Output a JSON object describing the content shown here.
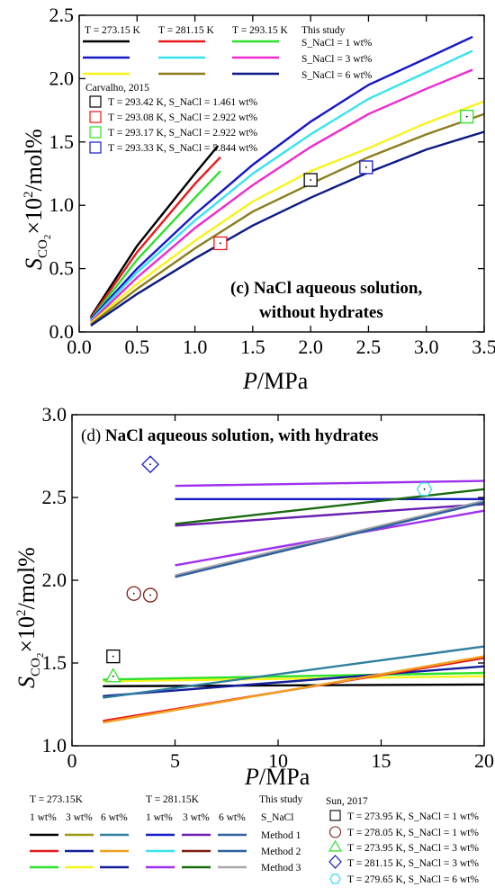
{
  "colors": {
    "black": "#000000",
    "red": "#e8191c",
    "green": "#2ee12a",
    "blue": "#1518c8",
    "cyan": "#38e3f0",
    "magenta": "#ef2ad0",
    "yellow": "#f7f41a",
    "olive": "#8c7d1c",
    "navy": "#0b1a85",
    "olive2": "#9a9a11",
    "teal": "#2f7f9f",
    "darkblue": "#141f9a",
    "orange": "#f0a020",
    "violet": "#6a1fb0",
    "brown": "#7a1c10",
    "steel": "#3060a0",
    "darkgreen": "#1a6a10",
    "purple": "#a030f0",
    "gray": "#a8a8a8",
    "lightblue": "#38d8f0"
  },
  "chart_data": [
    {
      "type": "line",
      "xlabel": {
        "italic": "P",
        "rest": "/MPa"
      },
      "ylabel": {
        "italic": "S",
        "sub": "CO",
        "sub2": "2",
        "rest": "×10",
        "sup": "2",
        "rest2": "/mol%"
      },
      "xlim": [
        0,
        3.5
      ],
      "ylim": [
        0,
        2.5
      ],
      "xticks": [
        "0.0",
        "0.5",
        "1.0",
        "1.5",
        "2.0",
        "2.5",
        "3.0",
        "3.5"
      ],
      "yticks": [
        "0.0",
        "0.5",
        "1.0",
        "1.5",
        "2.0",
        "2.5"
      ],
      "annotation": [
        "(c) NaCl aqueous solution,",
        "without hydrates"
      ],
      "legend_headers": [
        "T = 273.15 K",
        "T = 281.15 K",
        "T = 293.15 K",
        "This study"
      ],
      "legend_conditions": [
        "S_NaCl = 1 wt%",
        "S_NaCl = 3 wt%",
        "S_NaCl = 6 wt%"
      ],
      "legend_source": "Carvalho, 2015",
      "legend_points": [
        "T = 293.42 K, S_NaCl = 1.461 wt%",
        "T = 293.08 K, S_NaCl = 2.922 wt%",
        "T = 293.17 K, S_NaCl = 2.922 wt%",
        "T = 293.33 K, S_NaCl = 5.844 wt%"
      ],
      "series": [
        {
          "color": "black",
          "x": [
            0.1,
            0.5,
            1.0,
            1.2
          ],
          "y": [
            0.12,
            0.68,
            1.25,
            1.47
          ]
        },
        {
          "color": "red",
          "x": [
            0.1,
            0.5,
            1.0,
            1.22
          ],
          "y": [
            0.11,
            0.63,
            1.17,
            1.38
          ]
        },
        {
          "color": "green",
          "x": [
            0.1,
            0.5,
            1.0,
            1.22
          ],
          "y": [
            0.1,
            0.57,
            1.06,
            1.27
          ]
        },
        {
          "color": "blue",
          "x": [
            0.1,
            0.5,
            1.0,
            1.5,
            2.0,
            2.5,
            3.0,
            3.4
          ],
          "y": [
            0.1,
            0.5,
            0.93,
            1.32,
            1.66,
            1.95,
            2.16,
            2.33
          ]
        },
        {
          "color": "cyan",
          "x": [
            0.1,
            0.5,
            1.0,
            1.5,
            2.0,
            2.5,
            3.0,
            3.4
          ],
          "y": [
            0.09,
            0.47,
            0.88,
            1.25,
            1.56,
            1.84,
            2.05,
            2.22
          ]
        },
        {
          "color": "magenta",
          "x": [
            0.1,
            0.5,
            1.0,
            1.5,
            2.0,
            2.5,
            3.0,
            3.4
          ],
          "y": [
            0.08,
            0.43,
            0.82,
            1.16,
            1.46,
            1.72,
            1.92,
            2.07
          ]
        },
        {
          "color": "yellow",
          "x": [
            0.1,
            0.5,
            1.0,
            1.5,
            2.0,
            2.5,
            3.0,
            3.5
          ],
          "y": [
            0.07,
            0.38,
            0.72,
            1.03,
            1.27,
            1.45,
            1.65,
            1.82
          ]
        },
        {
          "color": "olive",
          "x": [
            0.1,
            0.5,
            1.0,
            1.5,
            2.0,
            2.5,
            3.0,
            3.5
          ],
          "y": [
            0.06,
            0.34,
            0.66,
            0.95,
            1.17,
            1.38,
            1.56,
            1.72
          ]
        },
        {
          "color": "navy",
          "x": [
            0.1,
            0.5,
            1.0,
            1.5,
            2.0,
            2.5,
            3.0,
            3.5
          ],
          "y": [
            0.05,
            0.3,
            0.58,
            0.84,
            1.06,
            1.26,
            1.44,
            1.58
          ]
        }
      ],
      "points": [
        {
          "x": 2.0,
          "y": 1.2,
          "color": "black",
          "shape": "square"
        },
        {
          "x": 1.22,
          "y": 0.7,
          "color": "red",
          "shape": "square"
        },
        {
          "x": 3.35,
          "y": 1.7,
          "color": "green",
          "shape": "square"
        },
        {
          "x": 2.48,
          "y": 1.3,
          "color": "blue",
          "shape": "square"
        }
      ]
    },
    {
      "type": "line",
      "xlabel": {
        "italic": "P",
        "rest": "/MPa"
      },
      "ylabel": {
        "italic": "S",
        "sub": "CO",
        "sub2": "2",
        "rest": "×10",
        "sup": "2",
        "rest2": "/mol%"
      },
      "xlim": [
        0,
        20
      ],
      "ylim": [
        1.0,
        3.0
      ],
      "xticks": [
        "0",
        "5",
        "10",
        "15",
        "20"
      ],
      "yticks": [
        "1.0",
        "1.5",
        "2.0",
        "2.5",
        "3.0"
      ],
      "annotation": [
        "(d) NaCl aqueous solution, with hydrates"
      ],
      "legend_t1": "T = 273.15K",
      "legend_t2": "T = 281.15K",
      "legend_study": "This study",
      "legend_snacl": "S_NaCl",
      "legend_wt": [
        "1 wt%",
        "3 wt%",
        "6 wt%"
      ],
      "legend_methods": [
        "Method 1",
        "Method 2",
        "Method 3"
      ],
      "legend_source": "Sun, 2017",
      "legend_points": [
        "T = 273.95 K, S_NaCl = 1 wt%",
        "T = 278.05 K, S_NaCl = 1 wt%",
        "T = 273.95 K, S_NaCl = 3 wt%",
        "T = 281.15 K, S_NaCl = 3 wt%",
        "T = 279.65 K, S_NaCl = 6 wt%"
      ],
      "legend_swatch_colors": [
        [
          "black",
          "olive2",
          "teal",
          "blue",
          "violet",
          "steel"
        ],
        [
          "red",
          "darkblue",
          "orange",
          "cyan",
          "brown",
          "steel"
        ],
        [
          "green",
          "yellow",
          "darkblue",
          "purple",
          "darkgreen",
          "gray"
        ]
      ],
      "series": [
        {
          "color": "black",
          "x": [
            1.5,
            20
          ],
          "y": [
            1.36,
            1.37
          ]
        },
        {
          "color": "yellow",
          "x": [
            1.5,
            20
          ],
          "y": [
            1.39,
            1.42
          ]
        },
        {
          "color": "green",
          "x": [
            1.5,
            20
          ],
          "y": [
            1.4,
            1.44
          ]
        },
        {
          "color": "darkblue",
          "x": [
            1.5,
            20
          ],
          "y": [
            1.3,
            1.48
          ]
        },
        {
          "color": "teal",
          "x": [
            1.5,
            20
          ],
          "y": [
            1.29,
            1.6
          ]
        },
        {
          "color": "red",
          "x": [
            1.5,
            20
          ],
          "y": [
            1.15,
            1.53
          ]
        },
        {
          "color": "orange",
          "x": [
            1.5,
            20
          ],
          "y": [
            1.14,
            1.54
          ]
        },
        {
          "color": "purple",
          "x": [
            5,
            20
          ],
          "y": [
            2.57,
            2.6
          ]
        },
        {
          "color": "blue",
          "x": [
            5,
            20
          ],
          "y": [
            2.49,
            2.49
          ]
        },
        {
          "color": "darkgreen",
          "x": [
            5,
            20
          ],
          "y": [
            2.34,
            2.55
          ]
        },
        {
          "color": "violet",
          "x": [
            5,
            20
          ],
          "y": [
            2.33,
            2.46
          ]
        },
        {
          "color": "purple",
          "x": [
            5,
            20
          ],
          "y": [
            2.09,
            2.42
          ]
        },
        {
          "color": "gray",
          "x": [
            5,
            20
          ],
          "y": [
            2.03,
            2.48
          ]
        },
        {
          "color": "steel",
          "x": [
            5,
            20
          ],
          "y": [
            2.02,
            2.47
          ]
        }
      ],
      "points": [
        {
          "x": 2.0,
          "y": 1.54,
          "color": "black",
          "shape": "square"
        },
        {
          "x": 3.0,
          "y": 1.92,
          "color": "brown",
          "shape": "circle"
        },
        {
          "x": 3.8,
          "y": 1.91,
          "color": "brown",
          "shape": "circle"
        },
        {
          "x": 2.0,
          "y": 1.42,
          "color": "green",
          "shape": "triangle"
        },
        {
          "x": 3.8,
          "y": 2.7,
          "color": "blue",
          "shape": "diamond"
        },
        {
          "x": 17.1,
          "y": 2.55,
          "color": "lightblue",
          "shape": "hexagon"
        }
      ]
    }
  ]
}
